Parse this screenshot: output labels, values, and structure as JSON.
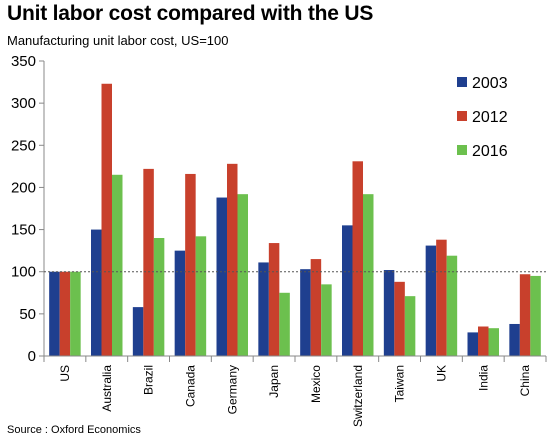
{
  "chart_data": {
    "type": "bar",
    "title": "Unit labor cost compared with the US",
    "subtitle": "Manufacturing unit labor cost, US=100",
    "source": "Source : Oxford Economics",
    "categories": [
      "US",
      "Australia",
      "Brazil",
      "Canada",
      "Germany",
      "Japan",
      "Mexico",
      "Switzerland",
      "Taiwan",
      "UK",
      "India",
      "China"
    ],
    "series": [
      {
        "name": "2003",
        "color": "#1f3f8f",
        "values": [
          100,
          150,
          58,
          125,
          188,
          111,
          103,
          155,
          102,
          131,
          28,
          38
        ]
      },
      {
        "name": "2012",
        "color": "#c8402c",
        "values": [
          100,
          323,
          222,
          216,
          228,
          134,
          115,
          231,
          88,
          138,
          35,
          97
        ]
      },
      {
        "name": "2016",
        "color": "#6cc04e",
        "values": [
          100,
          215,
          140,
          142,
          192,
          75,
          85,
          192,
          71,
          119,
          33,
          95
        ]
      }
    ],
    "ylim": [
      0,
      350
    ],
    "yticks": [
      "0",
      "50",
      "100",
      "150",
      "200",
      "250",
      "300",
      "350"
    ],
    "reference_line": 100,
    "grid": false,
    "legend_position": "top-right"
  }
}
